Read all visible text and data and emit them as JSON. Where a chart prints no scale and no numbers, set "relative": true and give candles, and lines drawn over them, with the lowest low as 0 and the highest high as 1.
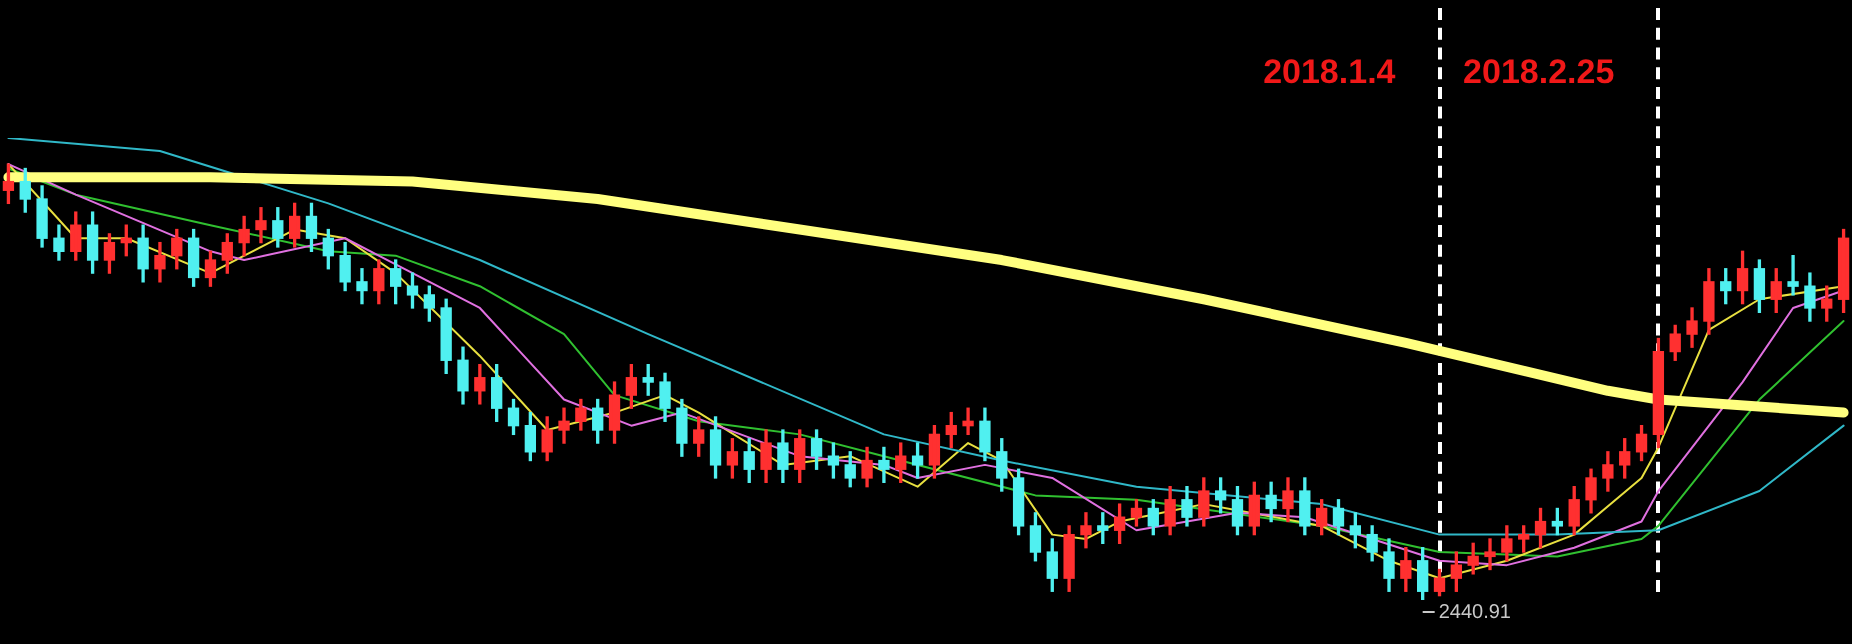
{
  "chart_data": {
    "type": "candlestick",
    "relative": true,
    "tick_labels": false,
    "legend": false,
    "marker": "none",
    "categories": [
      null,
      null,
      null,
      null,
      null,
      null,
      null,
      null,
      null,
      null,
      null,
      null,
      null,
      null,
      null,
      null,
      null,
      null,
      null,
      null,
      null,
      null,
      null,
      null,
      null,
      null,
      null,
      null,
      null,
      null,
      null,
      null,
      null,
      null,
      null,
      null,
      null,
      null,
      null,
      null,
      null,
      null,
      null,
      null,
      null,
      null,
      null,
      null,
      null,
      null,
      null,
      null,
      null,
      null,
      null,
      null,
      null,
      null,
      null,
      null,
      null,
      null,
      null,
      null,
      null,
      null,
      null,
      null,
      null,
      null,
      null,
      null,
      null,
      null,
      null,
      null,
      null,
      null,
      null,
      null,
      null,
      null,
      null,
      null,
      null,
      null,
      null,
      null,
      null,
      null,
      null,
      null,
      null,
      null,
      null,
      null,
      null,
      null,
      null,
      null,
      null,
      null,
      null,
      null,
      null,
      null,
      null,
      null,
      null,
      null
    ],
    "ohlc": [
      [
        0.94,
        1.0,
        0.91,
        0.96
      ],
      [
        0.96,
        0.99,
        0.89,
        0.92
      ],
      [
        0.92,
        0.95,
        0.81,
        0.83
      ],
      [
        0.83,
        0.86,
        0.78,
        0.8
      ],
      [
        0.8,
        0.89,
        0.78,
        0.86
      ],
      [
        0.86,
        0.89,
        0.75,
        0.78
      ],
      [
        0.78,
        0.84,
        0.75,
        0.82
      ],
      [
        0.82,
        0.86,
        0.79,
        0.83
      ],
      [
        0.83,
        0.86,
        0.73,
        0.76
      ],
      [
        0.76,
        0.82,
        0.73,
        0.79
      ],
      [
        0.79,
        0.85,
        0.76,
        0.83
      ],
      [
        0.83,
        0.85,
        0.72,
        0.74
      ],
      [
        0.74,
        0.8,
        0.72,
        0.78
      ],
      [
        0.78,
        0.84,
        0.75,
        0.82
      ],
      [
        0.82,
        0.88,
        0.79,
        0.85
      ],
      [
        0.85,
        0.9,
        0.82,
        0.87
      ],
      [
        0.87,
        0.9,
        0.81,
        0.83
      ],
      [
        0.83,
        0.91,
        0.81,
        0.88
      ],
      [
        0.88,
        0.91,
        0.8,
        0.83
      ],
      [
        0.83,
        0.85,
        0.76,
        0.79
      ],
      [
        0.79,
        0.82,
        0.71,
        0.73
      ],
      [
        0.73,
        0.76,
        0.68,
        0.71
      ],
      [
        0.71,
        0.78,
        0.68,
        0.76
      ],
      [
        0.76,
        0.78,
        0.68,
        0.72
      ],
      [
        0.72,
        0.75,
        0.67,
        0.7
      ],
      [
        0.7,
        0.72,
        0.64,
        0.67
      ],
      [
        0.67,
        0.69,
        0.52,
        0.55
      ],
      [
        0.55,
        0.58,
        0.45,
        0.48
      ],
      [
        0.48,
        0.54,
        0.45,
        0.51
      ],
      [
        0.51,
        0.54,
        0.41,
        0.44
      ],
      [
        0.44,
        0.46,
        0.38,
        0.4
      ],
      [
        0.4,
        0.43,
        0.32,
        0.34
      ],
      [
        0.34,
        0.42,
        0.32,
        0.39
      ],
      [
        0.39,
        0.44,
        0.36,
        0.41
      ],
      [
        0.41,
        0.46,
        0.39,
        0.44
      ],
      [
        0.44,
        0.46,
        0.36,
        0.39
      ],
      [
        0.39,
        0.5,
        0.36,
        0.47
      ],
      [
        0.47,
        0.54,
        0.44,
        0.51
      ],
      [
        0.51,
        0.54,
        0.47,
        0.5
      ],
      [
        0.5,
        0.52,
        0.41,
        0.44
      ],
      [
        0.44,
        0.46,
        0.33,
        0.36
      ],
      [
        0.36,
        0.42,
        0.33,
        0.39
      ],
      [
        0.39,
        0.42,
        0.28,
        0.31
      ],
      [
        0.31,
        0.37,
        0.28,
        0.34
      ],
      [
        0.34,
        0.37,
        0.27,
        0.3
      ],
      [
        0.3,
        0.39,
        0.27,
        0.36
      ],
      [
        0.36,
        0.39,
        0.27,
        0.3
      ],
      [
        0.3,
        0.39,
        0.27,
        0.37
      ],
      [
        0.37,
        0.39,
        0.3,
        0.33
      ],
      [
        0.33,
        0.36,
        0.28,
        0.31
      ],
      [
        0.31,
        0.34,
        0.26,
        0.28
      ],
      [
        0.28,
        0.35,
        0.26,
        0.32
      ],
      [
        0.32,
        0.35,
        0.27,
        0.3
      ],
      [
        0.3,
        0.36,
        0.27,
        0.33
      ],
      [
        0.33,
        0.36,
        0.28,
        0.31
      ],
      [
        0.31,
        0.4,
        0.28,
        0.38
      ],
      [
        0.38,
        0.43,
        0.35,
        0.4
      ],
      [
        0.4,
        0.44,
        0.38,
        0.41
      ],
      [
        0.41,
        0.44,
        0.32,
        0.34
      ],
      [
        0.34,
        0.37,
        0.25,
        0.28
      ],
      [
        0.28,
        0.3,
        0.15,
        0.17
      ],
      [
        0.17,
        0.2,
        0.09,
        0.11
      ],
      [
        0.11,
        0.14,
        0.02,
        0.05
      ],
      [
        0.05,
        0.17,
        0.02,
        0.15
      ],
      [
        0.15,
        0.2,
        0.12,
        0.17
      ],
      [
        0.17,
        0.2,
        0.13,
        0.16
      ],
      [
        0.16,
        0.22,
        0.13,
        0.19
      ],
      [
        0.19,
        0.23,
        0.17,
        0.21
      ],
      [
        0.21,
        0.23,
        0.15,
        0.17
      ],
      [
        0.17,
        0.26,
        0.15,
        0.23
      ],
      [
        0.23,
        0.26,
        0.17,
        0.19
      ],
      [
        0.19,
        0.28,
        0.17,
        0.25
      ],
      [
        0.25,
        0.28,
        0.2,
        0.23
      ],
      [
        0.23,
        0.26,
        0.15,
        0.17
      ],
      [
        0.17,
        0.27,
        0.15,
        0.24
      ],
      [
        0.24,
        0.27,
        0.18,
        0.21
      ],
      [
        0.21,
        0.28,
        0.18,
        0.25
      ],
      [
        0.25,
        0.28,
        0.15,
        0.17
      ],
      [
        0.17,
        0.23,
        0.15,
        0.21
      ],
      [
        0.21,
        0.23,
        0.15,
        0.17
      ],
      [
        0.17,
        0.2,
        0.12,
        0.15
      ],
      [
        0.15,
        0.17,
        0.09,
        0.11
      ],
      [
        0.11,
        0.14,
        0.02,
        0.05
      ],
      [
        0.05,
        0.12,
        0.02,
        0.09
      ],
      [
        0.09,
        0.12,
        0,
        0.02
      ],
      [
        0.02,
        0.07,
        0.01,
        0.05
      ],
      [
        0.05,
        0.11,
        0.02,
        0.08
      ],
      [
        0.08,
        0.13,
        0.06,
        0.1
      ],
      [
        0.1,
        0.14,
        0.07,
        0.11
      ],
      [
        0.11,
        0.17,
        0.09,
        0.14
      ],
      [
        0.14,
        0.17,
        0.11,
        0.15
      ],
      [
        0.15,
        0.21,
        0.12,
        0.18
      ],
      [
        0.18,
        0.21,
        0.15,
        0.17
      ],
      [
        0.17,
        0.26,
        0.15,
        0.23
      ],
      [
        0.23,
        0.3,
        0.2,
        0.28
      ],
      [
        0.28,
        0.34,
        0.25,
        0.31
      ],
      [
        0.31,
        0.37,
        0.28,
        0.34
      ],
      [
        0.34,
        0.4,
        0.32,
        0.38
      ],
      [
        0.38,
        0.6,
        0.35,
        0.57
      ],
      [
        0.57,
        0.63,
        0.55,
        0.61
      ],
      [
        0.61,
        0.67,
        0.58,
        0.64
      ],
      [
        0.64,
        0.76,
        0.61,
        0.73
      ],
      [
        0.73,
        0.76,
        0.68,
        0.71
      ],
      [
        0.71,
        0.8,
        0.68,
        0.76
      ],
      [
        0.76,
        0.78,
        0.66,
        0.69
      ],
      [
        0.69,
        0.76,
        0.66,
        0.73
      ],
      [
        0.73,
        0.79,
        0.7,
        0.72
      ],
      [
        0.72,
        0.75,
        0.64,
        0.67
      ],
      [
        0.67,
        0.72,
        0.64,
        0.69
      ],
      [
        0.69,
        0.85,
        0.66,
        0.83
      ]
    ],
    "colors": [
      "#ff3030",
      "#50f0f0",
      "#50f0f0",
      "#50f0f0",
      "#ff3030",
      "#50f0f0",
      "#ff3030",
      "#ff3030",
      "#50f0f0",
      "#ff3030",
      "#ff3030",
      "#50f0f0",
      "#ff3030",
      "#ff3030",
      "#ff3030",
      "#ff3030",
      "#50f0f0",
      "#ff3030",
      "#50f0f0",
      "#50f0f0",
      "#50f0f0",
      "#50f0f0",
      "#ff3030",
      "#50f0f0",
      "#50f0f0",
      "#50f0f0",
      "#50f0f0",
      "#50f0f0",
      "#ff3030",
      "#50f0f0",
      "#50f0f0",
      "#50f0f0",
      "#ff3030",
      "#ff3030",
      "#ff3030",
      "#50f0f0",
      "#ff3030",
      "#ff3030",
      "#50f0f0",
      "#50f0f0",
      "#50f0f0",
      "#ff3030",
      "#50f0f0",
      "#ff3030",
      "#50f0f0",
      "#ff3030",
      "#50f0f0",
      "#ff3030",
      "#50f0f0",
      "#50f0f0",
      "#50f0f0",
      "#ff3030",
      "#50f0f0",
      "#ff3030",
      "#50f0f0",
      "#ff3030",
      "#ff3030",
      "#ff3030",
      "#50f0f0",
      "#50f0f0",
      "#50f0f0",
      "#50f0f0",
      "#50f0f0",
      "#ff3030",
      "#ff3030",
      "#50f0f0",
      "#ff3030",
      "#ff3030",
      "#50f0f0",
      "#ff3030",
      "#50f0f0",
      "#ff3030",
      "#50f0f0",
      "#50f0f0",
      "#ff3030",
      "#50f0f0",
      "#ff3030",
      "#50f0f0",
      "#ff3030",
      "#50f0f0",
      "#50f0f0",
      "#50f0f0",
      "#50f0f0",
      "#ff3030",
      "#50f0f0",
      "#ff3030",
      "#ff3030",
      "#ff3030",
      "#ff3030",
      "#ff3030",
      "#ff3030",
      "#ff3030",
      "#50f0f0",
      "#ff3030",
      "#ff3030",
      "#ff3030",
      "#ff3030",
      "#ff3030",
      "#ff3030",
      "#ff3030",
      "#ff3030",
      "#ff3030",
      "#50f0f0",
      "#ff3030",
      "#50f0f0",
      "#ff3030",
      "#50f0f0",
      "#50f0f0",
      "#ff3030",
      "#ff3030"
    ],
    "series": [
      {
        "type": "line",
        "color": "#ffff80",
        "values": [
          0.97,
          null,
          null,
          null,
          null,
          null,
          null,
          null,
          null,
          null,
          null,
          null,
          0.97,
          null,
          null,
          null,
          null,
          null,
          null,
          null,
          null,
          null,
          null,
          null,
          0.96,
          null,
          null,
          null,
          null,
          null,
          null,
          null,
          null,
          null,
          null,
          0.92,
          null,
          null,
          null,
          null,
          null,
          null,
          null,
          null,
          null,
          null,
          null,
          0.85,
          null,
          null,
          null,
          null,
          null,
          null,
          null,
          null,
          null,
          null,
          null,
          0.78,
          null,
          null,
          null,
          null,
          null,
          null,
          null,
          null,
          null,
          null,
          null,
          0.69,
          null,
          null,
          null,
          null,
          null,
          null,
          null,
          null,
          null,
          null,
          null,
          0.59,
          null,
          null,
          null,
          null,
          null,
          null,
          null,
          null,
          null,
          null,
          null,
          0.48,
          null,
          null,
          0.46,
          null,
          null,
          null,
          null,
          null,
          null,
          null,
          null,
          null,
          null,
          0.43
        ]
      },
      {
        "type": "line",
        "color": "#30b8c8",
        "values": [
          1.06,
          null,
          null,
          null,
          null,
          null,
          null,
          null,
          null,
          1.03,
          null,
          null,
          null,
          null,
          null,
          null,
          null,
          null,
          null,
          0.91,
          null,
          null,
          null,
          null,
          null,
          null,
          null,
          null,
          0.78,
          null,
          null,
          null,
          null,
          null,
          null,
          null,
          null,
          null,
          0.61,
          null,
          null,
          null,
          null,
          null,
          null,
          null,
          null,
          null,
          null,
          null,
          null,
          null,
          0.38,
          null,
          null,
          null,
          null,
          null,
          null,
          0.32,
          null,
          null,
          null,
          null,
          null,
          null,
          null,
          0.26,
          null,
          null,
          null,
          null,
          null,
          null,
          null,
          null,
          null,
          null,
          0.22,
          null,
          null,
          null,
          null,
          null,
          null,
          0.15,
          null,
          null,
          null,
          null,
          null,
          null,
          0.15,
          null,
          null,
          null,
          null,
          null,
          0.16,
          null,
          null,
          null,
          null,
          null,
          0.25,
          null,
          null,
          null,
          null,
          0.4
        ]
      },
      {
        "type": "line",
        "color": "#e070e0",
        "values": [
          1.0,
          null,
          null,
          null,
          0.93,
          null,
          null,
          null,
          null,
          null,
          null,
          null,
          0.8,
          null,
          0.78,
          null,
          null,
          null,
          null,
          null,
          0.83,
          null,
          null,
          null,
          null,
          null,
          null,
          null,
          0.67,
          null,
          null,
          null,
          null,
          0.46,
          null,
          null,
          null,
          0.4,
          null,
          null,
          0.43,
          null,
          null,
          null,
          null,
          null,
          null,
          0.33,
          null,
          null,
          null,
          null,
          0.31,
          null,
          0.28,
          null,
          null,
          null,
          0.31,
          null,
          null,
          null,
          0.28,
          null,
          null,
          null,
          null,
          0.16,
          null,
          null,
          null,
          null,
          null,
          0.2,
          null,
          null,
          null,
          0.19,
          null,
          null,
          null,
          null,
          null,
          null,
          null,
          0.09,
          null,
          null,
          null,
          0.08,
          null,
          null,
          null,
          0.12,
          null,
          null,
          null,
          0.18,
          0.25,
          null,
          null,
          null,
          null,
          0.5,
          null,
          null,
          0.67,
          null,
          null,
          0.71
        ]
      },
      {
        "type": "line",
        "color": "#e8e040",
        "values": [
          1.0,
          null,
          null,
          null,
          0.83,
          null,
          null,
          0.83,
          null,
          null,
          null,
          null,
          0.75,
          null,
          null,
          null,
          null,
          0.85,
          null,
          null,
          0.83,
          null,
          null,
          0.75,
          null,
          null,
          null,
          null,
          0.56,
          null,
          null,
          null,
          0.39,
          null,
          null,
          null,
          0.43,
          null,
          null,
          0.47,
          null,
          0.43,
          null,
          null,
          null,
          null,
          0.31,
          null,
          null,
          null,
          0.33,
          null,
          null,
          null,
          0.26,
          null,
          null,
          0.36,
          null,
          0.32,
          null,
          null,
          0.15,
          null,
          0.14,
          null,
          0.18,
          null,
          null,
          null,
          null,
          0.22,
          null,
          null,
          null,
          null,
          null,
          null,
          0.17,
          null,
          null,
          null,
          0.09,
          null,
          null,
          0.05,
          null,
          null,
          null,
          0.09,
          null,
          null,
          null,
          0.15,
          null,
          null,
          null,
          0.28,
          0.35,
          null,
          null,
          0.62,
          null,
          null,
          0.69,
          null,
          null,
          null,
          null,
          0.72
        ]
      },
      {
        "type": "line",
        "color": "#30c030",
        "values": [
          0.99,
          null,
          null,
          null,
          0.93,
          null,
          null,
          null,
          null,
          null,
          null,
          null,
          0.86,
          null,
          null,
          null,
          null,
          null,
          null,
          0.8,
          null,
          null,
          null,
          0.79,
          null,
          null,
          null,
          null,
          0.72,
          null,
          null,
          null,
          null,
          0.61,
          null,
          null,
          0.47,
          null,
          null,
          null,
          null,
          0.41,
          null,
          null,
          null,
          null,
          null,
          0.38,
          null,
          null,
          null,
          null,
          0.33,
          null,
          null,
          null,
          null,
          null,
          null,
          null,
          null,
          0.24,
          null,
          null,
          null,
          null,
          null,
          0.23,
          null,
          null,
          null,
          null,
          null,
          null,
          null,
          null,
          null,
          null,
          0.17,
          null,
          null,
          null,
          null,
          null,
          null,
          0.11,
          null,
          null,
          null,
          null,
          null,
          null,
          0.1,
          null,
          null,
          null,
          null,
          0.14,
          0.17,
          null,
          null,
          null,
          null,
          null,
          0.46,
          null,
          null,
          null,
          null,
          0.64
        ]
      }
    ],
    "annotations": [
      "2018.1.4",
      "2018.2.25",
      "2440.91"
    ]
  }
}
